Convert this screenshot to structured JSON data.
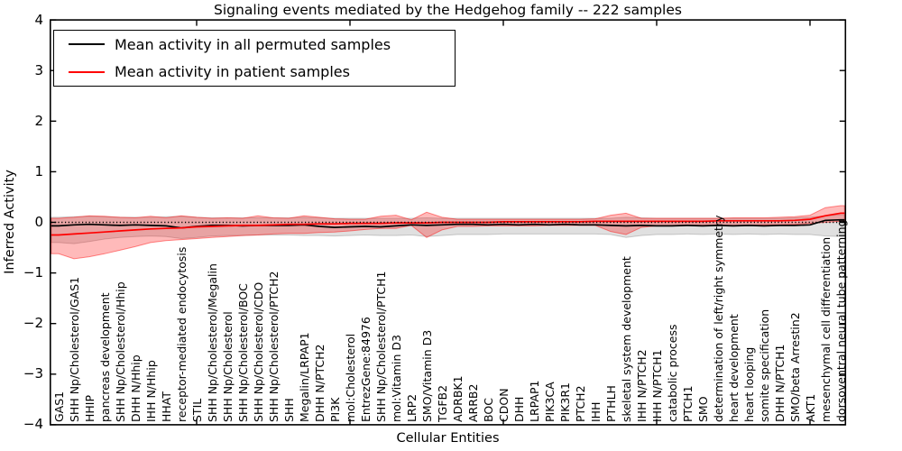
{
  "figure": {
    "title": "Signaling events mediated by the Hedgehog family -- 222 samples",
    "xlabel": "Cellular Entities",
    "ylabel": "Inferred Activity"
  },
  "legend": {
    "entries": [
      {
        "label": "Mean activity in all permuted samples",
        "color": "#000000"
      },
      {
        "label": "Mean activity in patient samples",
        "color": "#ff0000"
      }
    ]
  },
  "chart_data": {
    "type": "line",
    "title": "Signaling events mediated by the Hedgehog family -- 222 samples",
    "xlabel": "Cellular Entities",
    "ylabel": "Inferred Activity",
    "ylim": [
      -4,
      4
    ],
    "grid": false,
    "legend_position": "upper left",
    "zero_line": 0,
    "ytick_values": [
      4,
      3,
      2,
      1,
      0,
      -1,
      -2,
      -3,
      -4
    ],
    "ytick_labels": [
      "4",
      "3",
      "2",
      "1",
      "0",
      "−1",
      "−2",
      "−3",
      "−4"
    ],
    "xtick_index_positions": [
      9,
      19,
      29,
      39,
      49
    ],
    "categories": [
      "GAS1",
      "SHH Np/Cholesterol/GAS1",
      "HHIP",
      "pancreas development",
      "SHH Np/Cholesterol/Hhip",
      "DHH N/Hhip",
      "IHH N/Hhip",
      "HHAT",
      "receptor-mediated endocytosis",
      "STIL",
      "SHH Np/Cholesterol/Megalin",
      "SHH Np/Cholesterol",
      "SHH Np/Cholesterol/BOC",
      "SHH Np/Cholesterol/CDO",
      "SHH Np/Cholesterol/PTCH2",
      "SHH",
      "Megalin/LRPAP1",
      "DHH N/PTCH2",
      "PI3K",
      "mol:Cholesterol",
      "EntrezGene:84976",
      "SHH Np/Cholesterol/PTCH1",
      "mol:Vitamin D3",
      "LRP2",
      "SMO/Vitamin D3",
      "TGFB2",
      "ADRBK1",
      "ARRB2",
      "BOC",
      "CDON",
      "DHH",
      "LRPAP1",
      "PIK3CA",
      "PIK3R1",
      "PTCH2",
      "IHH",
      "PTHLH",
      "skeletal system development",
      "IHH N/PTCH2",
      "IHH N/PTCH1",
      "catabolic process",
      "PTCH1",
      "SMO",
      "determination of left/right symmetry",
      "heart development",
      "heart looping",
      "somite specification",
      "DHH N/PTCH1",
      "SMO/beta Arrestin2",
      "AKT1",
      "mesenchymal cell differentiation",
      "dorsoventral neural tube patterning"
    ],
    "series": [
      {
        "name": "Mean activity in all permuted samples",
        "color": "#000000",
        "values": [
          -0.07,
          -0.05,
          -0.04,
          -0.05,
          -0.06,
          -0.05,
          -0.06,
          -0.07,
          -0.11,
          -0.08,
          -0.06,
          -0.06,
          -0.07,
          -0.06,
          -0.06,
          -0.06,
          -0.05,
          -0.08,
          -0.1,
          -0.09,
          -0.08,
          -0.09,
          -0.07,
          -0.05,
          -0.06,
          -0.05,
          -0.04,
          -0.04,
          -0.05,
          -0.04,
          -0.05,
          -0.04,
          -0.05,
          -0.04,
          -0.05,
          -0.05,
          -0.06,
          -0.07,
          -0.06,
          -0.07,
          -0.07,
          -0.06,
          -0.07,
          -0.06,
          -0.07,
          -0.06,
          -0.07,
          -0.06,
          -0.06,
          -0.05,
          0.04,
          0.05
        ]
      },
      {
        "name": "Mean activity in patient samples",
        "color": "#ff0000",
        "values": [
          -0.25,
          -0.23,
          -0.21,
          -0.19,
          -0.17,
          -0.15,
          -0.13,
          -0.12,
          -0.11,
          -0.09,
          -0.08,
          -0.07,
          -0.06,
          -0.06,
          -0.05,
          -0.04,
          -0.04,
          -0.03,
          -0.03,
          -0.02,
          -0.02,
          -0.02,
          -0.01,
          -0.01,
          -0.01,
          0.0,
          0.0,
          0.0,
          0.0,
          0.01,
          0.01,
          0.01,
          0.01,
          0.01,
          0.01,
          0.02,
          0.02,
          0.02,
          0.02,
          0.02,
          0.02,
          0.02,
          0.02,
          0.03,
          0.03,
          0.03,
          0.03,
          0.03,
          0.04,
          0.06,
          0.13,
          0.18
        ]
      }
    ],
    "bands": [
      {
        "name": "permuted samples range",
        "fill": "#000000",
        "fill_alpha": 0.12,
        "edge_alpha": 0.18,
        "lower": [
          -0.4,
          -0.42,
          -0.38,
          -0.33,
          -0.3,
          -0.28,
          -0.27,
          -0.28,
          -0.32,
          -0.3,
          -0.27,
          -0.26,
          -0.26,
          -0.25,
          -0.25,
          -0.25,
          -0.26,
          -0.26,
          -0.27,
          -0.26,
          -0.25,
          -0.26,
          -0.26,
          -0.25,
          -0.28,
          -0.26,
          -0.24,
          -0.24,
          -0.24,
          -0.23,
          -0.23,
          -0.23,
          -0.23,
          -0.23,
          -0.23,
          -0.23,
          -0.24,
          -0.3,
          -0.26,
          -0.24,
          -0.24,
          -0.23,
          -0.24,
          -0.23,
          -0.24,
          -0.23,
          -0.24,
          -0.23,
          -0.24,
          -0.24,
          -0.27,
          -0.28
        ],
        "upper": [
          0.1,
          0.11,
          0.12,
          0.11,
          0.1,
          0.1,
          0.1,
          0.11,
          0.12,
          0.1,
          0.09,
          0.09,
          0.09,
          0.09,
          0.09,
          0.09,
          0.1,
          0.09,
          0.08,
          0.08,
          0.08,
          0.08,
          0.08,
          0.08,
          0.09,
          0.08,
          0.08,
          0.08,
          0.08,
          0.08,
          0.08,
          0.08,
          0.08,
          0.08,
          0.08,
          0.08,
          0.08,
          0.1,
          0.09,
          0.08,
          0.08,
          0.08,
          0.08,
          0.08,
          0.08,
          0.08,
          0.08,
          0.08,
          0.09,
          0.1,
          0.13,
          0.15
        ]
      },
      {
        "name": "patient samples range",
        "fill": "#ff0000",
        "fill_alpha": 0.27,
        "edge_alpha": 0.45,
        "lower": [
          -0.62,
          -0.72,
          -0.68,
          -0.62,
          -0.55,
          -0.48,
          -0.4,
          -0.36,
          -0.34,
          -0.32,
          -0.3,
          -0.28,
          -0.26,
          -0.25,
          -0.23,
          -0.22,
          -0.22,
          -0.2,
          -0.19,
          -0.17,
          -0.14,
          -0.12,
          -0.12,
          -0.06,
          -0.3,
          -0.15,
          -0.08,
          -0.08,
          -0.07,
          -0.07,
          -0.07,
          -0.07,
          -0.06,
          -0.06,
          -0.06,
          -0.06,
          -0.18,
          -0.24,
          -0.1,
          -0.07,
          -0.07,
          -0.06,
          -0.06,
          -0.06,
          -0.06,
          -0.06,
          -0.05,
          -0.05,
          -0.04,
          -0.02,
          0.0,
          0.02
        ],
        "upper": [
          0.08,
          0.1,
          0.13,
          0.12,
          0.1,
          0.09,
          0.12,
          0.09,
          0.13,
          0.1,
          0.08,
          0.09,
          0.08,
          0.13,
          0.09,
          0.08,
          0.13,
          0.1,
          0.07,
          0.06,
          0.06,
          0.12,
          0.14,
          0.05,
          0.2,
          0.1,
          0.06,
          0.06,
          0.06,
          0.06,
          0.06,
          0.06,
          0.06,
          0.06,
          0.06,
          0.07,
          0.14,
          0.18,
          0.08,
          0.08,
          0.08,
          0.08,
          0.08,
          0.08,
          0.09,
          0.09,
          0.09,
          0.1,
          0.11,
          0.14,
          0.29,
          0.33
        ]
      }
    ]
  }
}
